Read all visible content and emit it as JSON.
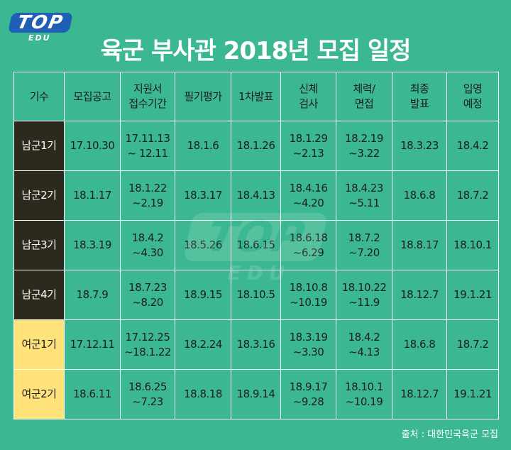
{
  "logo": {
    "main": "TOP",
    "sub": "EDU"
  },
  "title": "육군 부사관 2018년 모집 일정",
  "headers": [
    [
      "기수"
    ],
    [
      "모집공고"
    ],
    [
      "지원서",
      "접수기간"
    ],
    [
      "필기평가"
    ],
    [
      "1차발표"
    ],
    [
      "신체",
      "검사"
    ],
    [
      "체력/",
      "면접"
    ],
    [
      "최종",
      "발표"
    ],
    [
      "입영",
      "예정"
    ]
  ],
  "rows": [
    {
      "label": "남군1기",
      "style": "dark",
      "cells": [
        [
          "17.10.30"
        ],
        [
          "17.11.13",
          "~ 12.11"
        ],
        [
          "18.1.6"
        ],
        [
          "18.1.26"
        ],
        [
          "18.1.29",
          "~2.13"
        ],
        [
          "18.2.19",
          "~3.22"
        ],
        [
          "18.3.23"
        ],
        [
          "18.4.2"
        ]
      ]
    },
    {
      "label": "남군2기",
      "style": "dark",
      "cells": [
        [
          "18.1.17"
        ],
        [
          "18.1.22",
          "~2.19"
        ],
        [
          "18.3.17"
        ],
        [
          "18.4.13"
        ],
        [
          "18.4.16",
          "~4.20"
        ],
        [
          "18.4.23",
          "~5.11"
        ],
        [
          "18.6.8"
        ],
        [
          "18.7.2"
        ]
      ]
    },
    {
      "label": "남군3기",
      "style": "dark",
      "cells": [
        [
          "18.3.19"
        ],
        [
          "18.4.2",
          "~4.30"
        ],
        [
          "18.5.26"
        ],
        [
          "18.6.15"
        ],
        [
          "18.6.18",
          "~6.29"
        ],
        [
          "18.7.2",
          "~7.20"
        ],
        [
          "18.8.17"
        ],
        [
          "18.10.1"
        ]
      ]
    },
    {
      "label": "남군4기",
      "style": "dark",
      "cells": [
        [
          "18.7.9"
        ],
        [
          "18.7.23",
          "~8.20"
        ],
        [
          "18.9.15"
        ],
        [
          "18.10.5"
        ],
        [
          "18.10.8",
          "~10.19"
        ],
        [
          "18.10.22",
          "~11.9"
        ],
        [
          "18.12.7"
        ],
        [
          "19.1.21"
        ]
      ]
    },
    {
      "label": "여군1기",
      "style": "yellow",
      "cells": [
        [
          "17.12.11"
        ],
        [
          "17.12.25",
          "~18.1.22"
        ],
        [
          "18.2.24"
        ],
        [
          "18.3.16"
        ],
        [
          "18.3.19",
          "~3.30"
        ],
        [
          "18.4.2",
          "~4.13"
        ],
        [
          "18.6.8"
        ],
        [
          "18.7.2"
        ]
      ]
    },
    {
      "label": "여군2기",
      "style": "yellow",
      "cells": [
        [
          "18.6.11"
        ],
        [
          "18.6.25",
          "~7.23"
        ],
        [
          "18.8.18"
        ],
        [
          "18.9.14"
        ],
        [
          "18.9.17",
          "~9.28"
        ],
        [
          "18.10.1",
          "~10.19"
        ],
        [
          "18.12.7"
        ],
        [
          "19.1.21"
        ]
      ]
    }
  ],
  "source": "출처 : 대한민국육군 모집",
  "colors": {
    "background": "#3bb891",
    "label_dark": "#2b2a1c",
    "label_yellow": "#ffe27a",
    "logo_blue": "#1f5fb5"
  }
}
